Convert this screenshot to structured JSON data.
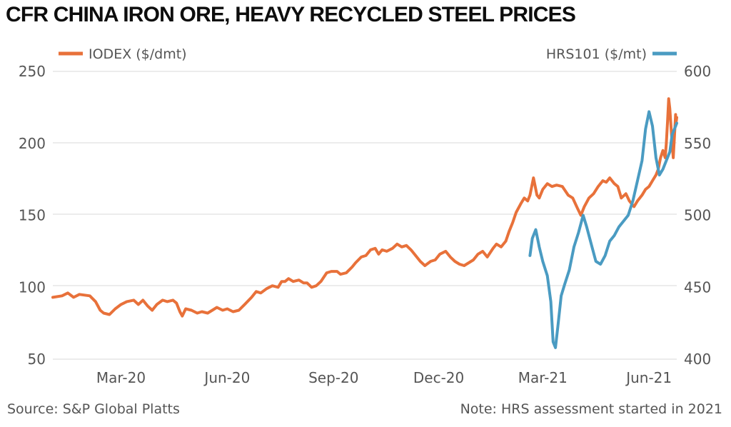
{
  "title": "CFR CHINA IRON ORE, HEAVY RECYCLED STEEL PRICES",
  "source": "Source: S&P Global Platts",
  "note": "Note: HRS assessment started in 2021",
  "colors": {
    "iodex": "#e8713a",
    "hrs": "#4a9bc2",
    "grid": "#d9d9d9"
  },
  "chart_data": {
    "type": "line",
    "title": "CFR CHINA IRON ORE, HEAVY RECYCLED STEEL PRICES",
    "x_tick_labels": [
      "Mar-20",
      "Jun-20",
      "Sep-20",
      "Dec-20",
      "Mar-21",
      "Jun-21"
    ],
    "x_tick_dates": [
      "2020-03-01",
      "2020-06-01",
      "2020-09-01",
      "2020-12-01",
      "2021-03-01",
      "2021-06-01"
    ],
    "xlim": [
      "2020-01-02",
      "2021-06-25"
    ],
    "y_left": {
      "label": "IODEX ($/dmt)",
      "ticks": [
        50,
        100,
        150,
        200,
        250
      ],
      "lim": [
        50,
        250
      ]
    },
    "y_right": {
      "label": "HRS101 ($/mt)",
      "ticks": [
        400,
        450,
        500,
        550,
        600
      ],
      "lim": [
        400,
        600
      ]
    },
    "grid": true,
    "legend": [
      "top-left",
      "top-right"
    ],
    "series": [
      {
        "name": "IODEX ($/dmt)",
        "axis": "left",
        "points": [
          [
            "2020-01-02",
            93
          ],
          [
            "2020-01-10",
            94
          ],
          [
            "2020-01-15",
            96
          ],
          [
            "2020-01-20",
            93
          ],
          [
            "2020-01-25",
            95
          ],
          [
            "2020-02-03",
            94
          ],
          [
            "2020-02-08",
            90
          ],
          [
            "2020-02-12",
            84
          ],
          [
            "2020-02-15",
            82
          ],
          [
            "2020-02-20",
            81
          ],
          [
            "2020-02-25",
            85
          ],
          [
            "2020-03-01",
            88
          ],
          [
            "2020-03-06",
            90
          ],
          [
            "2020-03-12",
            91
          ],
          [
            "2020-03-16",
            88
          ],
          [
            "2020-03-20",
            91
          ],
          [
            "2020-03-24",
            87
          ],
          [
            "2020-03-28",
            84
          ],
          [
            "2020-04-01",
            88
          ],
          [
            "2020-04-06",
            91
          ],
          [
            "2020-04-10",
            90
          ],
          [
            "2020-04-15",
            91
          ],
          [
            "2020-04-18",
            89
          ],
          [
            "2020-04-21",
            83
          ],
          [
            "2020-04-23",
            80
          ],
          [
            "2020-04-26",
            85
          ],
          [
            "2020-05-01",
            84
          ],
          [
            "2020-05-06",
            82
          ],
          [
            "2020-05-10",
            83
          ],
          [
            "2020-05-15",
            82
          ],
          [
            "2020-05-19",
            84
          ],
          [
            "2020-05-23",
            86
          ],
          [
            "2020-05-28",
            84
          ],
          [
            "2020-06-01",
            85
          ],
          [
            "2020-06-06",
            83
          ],
          [
            "2020-06-11",
            84
          ],
          [
            "2020-06-16",
            88
          ],
          [
            "2020-06-22",
            93
          ],
          [
            "2020-06-26",
            97
          ],
          [
            "2020-06-30",
            96
          ],
          [
            "2020-07-05",
            99
          ],
          [
            "2020-07-10",
            101
          ],
          [
            "2020-07-15",
            100
          ],
          [
            "2020-07-18",
            104
          ],
          [
            "2020-07-21",
            104
          ],
          [
            "2020-07-24",
            106
          ],
          [
            "2020-07-28",
            104
          ],
          [
            "2020-08-02",
            105
          ],
          [
            "2020-08-06",
            103
          ],
          [
            "2020-08-09",
            103
          ],
          [
            "2020-08-13",
            100
          ],
          [
            "2020-08-17",
            101
          ],
          [
            "2020-08-21",
            104
          ],
          [
            "2020-08-26",
            110
          ],
          [
            "2020-08-30",
            111
          ],
          [
            "2020-09-04",
            111
          ],
          [
            "2020-09-07",
            109
          ],
          [
            "2020-09-12",
            110
          ],
          [
            "2020-09-17",
            114
          ],
          [
            "2020-09-20",
            117
          ],
          [
            "2020-09-25",
            121
          ],
          [
            "2020-09-29",
            122
          ],
          [
            "2020-10-03",
            126
          ],
          [
            "2020-10-07",
            127
          ],
          [
            "2020-10-10",
            123
          ],
          [
            "2020-10-13",
            126
          ],
          [
            "2020-10-17",
            125
          ],
          [
            "2020-10-22",
            127
          ],
          [
            "2020-10-26",
            130
          ],
          [
            "2020-10-30",
            128
          ],
          [
            "2020-11-03",
            129
          ],
          [
            "2020-11-07",
            126
          ],
          [
            "2020-11-11",
            122
          ],
          [
            "2020-11-15",
            118
          ],
          [
            "2020-11-19",
            115
          ],
          [
            "2020-11-24",
            118
          ],
          [
            "2020-11-28",
            119
          ],
          [
            "2020-12-02",
            123
          ],
          [
            "2020-12-07",
            125
          ],
          [
            "2020-12-11",
            121
          ],
          [
            "2020-12-15",
            118
          ],
          [
            "2020-12-19",
            116
          ],
          [
            "2020-12-23",
            115
          ],
          [
            "2020-12-27",
            117
          ],
          [
            "2020-12-31",
            119
          ],
          [
            "2021-01-04",
            123
          ],
          [
            "2021-01-08",
            125
          ],
          [
            "2021-01-12",
            121
          ],
          [
            "2021-01-17",
            127
          ],
          [
            "2021-01-20",
            130
          ],
          [
            "2021-01-24",
            128
          ],
          [
            "2021-01-28",
            132
          ],
          [
            "2021-01-31",
            139
          ],
          [
            "2021-02-03",
            145
          ],
          [
            "2021-02-06",
            152
          ],
          [
            "2021-02-10",
            158
          ],
          [
            "2021-02-13",
            162
          ],
          [
            "2021-02-16",
            160
          ],
          [
            "2021-02-18",
            164
          ],
          [
            "2021-02-21",
            176
          ],
          [
            "2021-02-24",
            164
          ],
          [
            "2021-02-26",
            162
          ],
          [
            "2021-03-01",
            168
          ],
          [
            "2021-03-05",
            172
          ],
          [
            "2021-03-09",
            170
          ],
          [
            "2021-03-13",
            171
          ],
          [
            "2021-03-18",
            170
          ],
          [
            "2021-03-23",
            164
          ],
          [
            "2021-03-27",
            162
          ],
          [
            "2021-03-31",
            155
          ],
          [
            "2021-04-03",
            150
          ],
          [
            "2021-04-06",
            156
          ],
          [
            "2021-04-10",
            162
          ],
          [
            "2021-04-14",
            165
          ],
          [
            "2021-04-18",
            170
          ],
          [
            "2021-04-22",
            174
          ],
          [
            "2021-04-25",
            173
          ],
          [
            "2021-04-28",
            176
          ],
          [
            "2021-05-02",
            172
          ],
          [
            "2021-05-05",
            170
          ],
          [
            "2021-05-08",
            162
          ],
          [
            "2021-05-12",
            165
          ],
          [
            "2021-05-15",
            160
          ],
          [
            "2021-05-19",
            156
          ],
          [
            "2021-05-22",
            160
          ],
          [
            "2021-05-26",
            164
          ],
          [
            "2021-05-29",
            168
          ],
          [
            "2021-06-01",
            170
          ],
          [
            "2021-06-04",
            174
          ],
          [
            "2021-06-07",
            178
          ],
          [
            "2021-06-09",
            182
          ],
          [
            "2021-06-11",
            190
          ],
          [
            "2021-06-13",
            195
          ],
          [
            "2021-06-15",
            190
          ],
          [
            "2021-06-16",
            200
          ],
          [
            "2021-06-17",
            215
          ],
          [
            "2021-06-18",
            231
          ],
          [
            "2021-06-19",
            224
          ],
          [
            "2021-06-20",
            212
          ],
          [
            "2021-06-21",
            200
          ],
          [
            "2021-06-22",
            190
          ],
          [
            "2021-06-23",
            205
          ],
          [
            "2021-06-24",
            220
          ],
          [
            "2021-06-24",
            212
          ],
          [
            "2021-06-25",
            218
          ]
        ]
      },
      {
        "name": "HRS101 ($/mt)",
        "axis": "right",
        "points": [
          [
            "2021-02-18",
            472
          ],
          [
            "2021-02-20",
            484
          ],
          [
            "2021-02-23",
            490
          ],
          [
            "2021-02-26",
            478
          ],
          [
            "2021-03-01",
            468
          ],
          [
            "2021-03-05",
            458
          ],
          [
            "2021-03-08",
            440
          ],
          [
            "2021-03-10",
            412
          ],
          [
            "2021-03-12",
            408
          ],
          [
            "2021-03-14",
            422
          ],
          [
            "2021-03-17",
            444
          ],
          [
            "2021-03-20",
            452
          ],
          [
            "2021-03-24",
            462
          ],
          [
            "2021-03-28",
            478
          ],
          [
            "2021-04-01",
            488
          ],
          [
            "2021-04-05",
            500
          ],
          [
            "2021-04-08",
            492
          ],
          [
            "2021-04-12",
            480
          ],
          [
            "2021-04-16",
            468
          ],
          [
            "2021-04-20",
            466
          ],
          [
            "2021-04-24",
            472
          ],
          [
            "2021-04-28",
            482
          ],
          [
            "2021-05-02",
            486
          ],
          [
            "2021-05-06",
            492
          ],
          [
            "2021-05-10",
            496
          ],
          [
            "2021-05-14",
            500
          ],
          [
            "2021-05-18",
            510
          ],
          [
            "2021-05-22",
            524
          ],
          [
            "2021-05-26",
            538
          ],
          [
            "2021-05-29",
            560
          ],
          [
            "2021-06-01",
            572
          ],
          [
            "2021-06-04",
            562
          ],
          [
            "2021-06-07",
            540
          ],
          [
            "2021-06-10",
            528
          ],
          [
            "2021-06-13",
            532
          ],
          [
            "2021-06-16",
            538
          ],
          [
            "2021-06-19",
            544
          ],
          [
            "2021-06-21",
            556
          ],
          [
            "2021-06-23",
            560
          ],
          [
            "2021-06-25",
            564
          ]
        ]
      }
    ]
  }
}
